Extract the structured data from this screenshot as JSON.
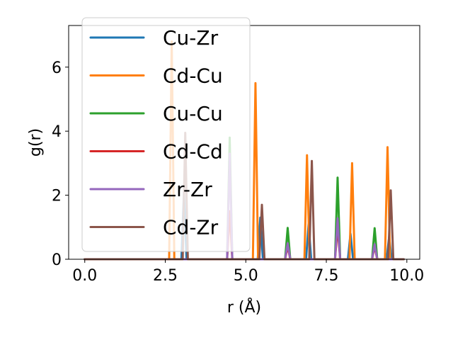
{
  "chart_data": {
    "type": "line",
    "xlabel": "r (Å)",
    "ylabel": "g(r)",
    "xlim": [
      -0.5,
      10.4
    ],
    "ylim": [
      0,
      7.3
    ],
    "xticks": [
      0.0,
      2.5,
      5.0,
      7.5,
      10.0
    ],
    "xtick_labels": [
      "0.0",
      "2.5",
      "5.0",
      "7.5",
      "10.0"
    ],
    "yticks": [
      0,
      2,
      4,
      6
    ],
    "ytick_labels": [
      "0",
      "2",
      "4",
      "6"
    ],
    "grid": false,
    "legend_position": "top-left",
    "peak_half_width": 0.08,
    "series": [
      {
        "name": "Cu-Zr",
        "color": "#1f77b4",
        "peaks": [
          [
            3.08,
            2.1
          ],
          [
            5.45,
            1.3
          ],
          [
            6.95,
            1.1
          ],
          [
            8.25,
            0.8
          ],
          [
            9.45,
            0.7
          ]
        ]
      },
      {
        "name": "Cd-Cu",
        "color": "#ff7f0e",
        "peaks": [
          [
            2.7,
            6.8
          ],
          [
            5.3,
            5.5
          ],
          [
            6.9,
            3.25
          ],
          [
            8.3,
            3.0
          ],
          [
            9.4,
            3.5
          ]
        ]
      },
      {
        "name": "Cu-Cu",
        "color": "#2ca02c",
        "peaks": [
          [
            4.5,
            3.8
          ],
          [
            6.3,
            0.98
          ],
          [
            7.85,
            2.55
          ],
          [
            9.0,
            0.97
          ]
        ]
      },
      {
        "name": "Cd-Cd",
        "color": "#d62728",
        "peaks": [
          [
            4.5,
            1.5
          ],
          [
            6.3,
            0.4
          ],
          [
            7.85,
            1.0
          ],
          [
            9.0,
            0.4
          ]
        ]
      },
      {
        "name": "Zr-Zr",
        "color": "#9467bd",
        "peaks": [
          [
            4.5,
            3.3
          ],
          [
            6.3,
            0.5
          ],
          [
            7.85,
            1.28
          ],
          [
            9.0,
            0.47
          ]
        ]
      },
      {
        "name": "Cd-Zr",
        "color": "#8c564b",
        "peaks": [
          [
            3.12,
            3.95
          ],
          [
            5.5,
            1.7
          ],
          [
            7.05,
            3.07
          ],
          [
            9.5,
            2.15
          ]
        ]
      }
    ]
  }
}
